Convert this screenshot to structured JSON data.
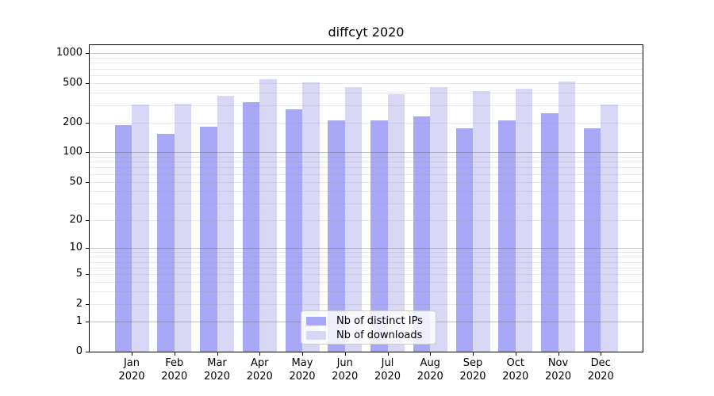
{
  "title": "diffcyt 2020",
  "colors": {
    "distinct_ips_bar": "#a8a8f6",
    "downloads_bar": "#d8d8f6",
    "axis": "#000000",
    "legend_border": "#cccccc"
  },
  "legend": {
    "items": [
      {
        "label": "Nb of distinct IPs",
        "series": "distinct_ips"
      },
      {
        "label": "Nb of downloads",
        "series": "downloads"
      }
    ]
  },
  "y_axis": {
    "tick_labels": [
      "0",
      "1",
      "2",
      "5",
      "10",
      "20",
      "50",
      "100",
      "200",
      "500",
      "1000"
    ]
  },
  "x_axis": {
    "tick_labels": [
      "Jan 2020",
      "Feb 2020",
      "Mar 2020",
      "Apr 2020",
      "May 2020",
      "Jun 2020",
      "Jul 2020",
      "Aug 2020",
      "Sep 2020",
      "Oct 2020",
      "Nov 2020",
      "Dec 2020"
    ]
  },
  "chart_data": {
    "type": "bar",
    "title": "diffcyt 2020",
    "categories": [
      "Jan 2020",
      "Feb 2020",
      "Mar 2020",
      "Apr 2020",
      "May 2020",
      "Jun 2020",
      "Jul 2020",
      "Aug 2020",
      "Sep 2020",
      "Oct 2020",
      "Nov 2020",
      "Dec 2020"
    ],
    "series": [
      {
        "name": "Nb of distinct IPs",
        "color": "#a8a8f6",
        "values": [
          190,
          155,
          183,
          320,
          272,
          212,
          210,
          229,
          175,
          209,
          249,
          175
        ]
      },
      {
        "name": "Nb of downloads",
        "color": "#d8d8f6",
        "values": [
          303,
          312,
          369,
          543,
          505,
          454,
          388,
          457,
          412,
          438,
          514,
          303
        ]
      }
    ],
    "yscale": "log10(value+1)",
    "ylim": [
      0,
      1205
    ],
    "y_ticks": [
      0,
      1,
      2,
      5,
      10,
      20,
      50,
      100,
      200,
      500,
      1000
    ],
    "grid_values_minor": [
      2,
      3,
      4,
      5,
      6,
      7,
      8,
      9,
      20,
      30,
      40,
      50,
      60,
      70,
      80,
      90,
      200,
      300,
      400,
      500,
      600,
      700,
      800,
      900
    ],
    "grid_values_major": [
      1,
      10,
      100,
      1000
    ],
    "grid": "horizontal",
    "legend_position": "lower center",
    "xlabel": "",
    "ylabel": ""
  }
}
